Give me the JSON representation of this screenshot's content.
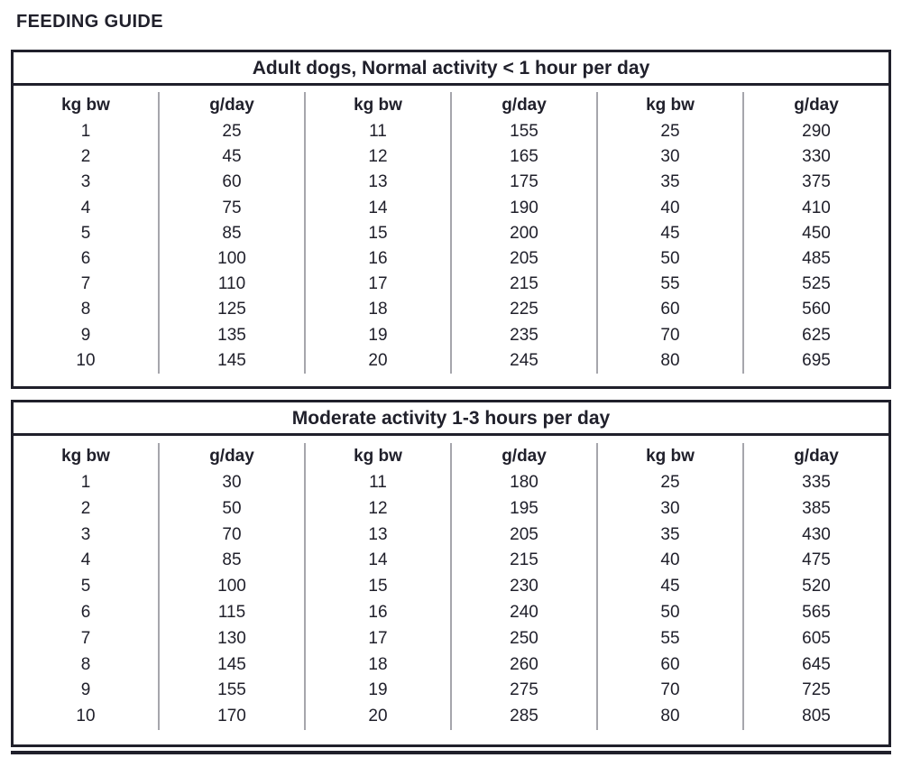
{
  "page_title": "FEEDING GUIDE",
  "colors": {
    "ink": "#20202b",
    "divider": "#a6a6ac",
    "background": "#ffffff"
  },
  "tables": [
    {
      "title": "Adult dogs, Normal activity < 1 hour per day",
      "col_header_kg": "kg bw",
      "col_header_g": "g/day",
      "groups": [
        {
          "kg": [
            1,
            2,
            3,
            4,
            5,
            6,
            7,
            8,
            9,
            10
          ],
          "g": [
            25,
            45,
            60,
            75,
            85,
            100,
            110,
            125,
            135,
            145
          ]
        },
        {
          "kg": [
            11,
            12,
            13,
            14,
            15,
            16,
            17,
            18,
            19,
            20
          ],
          "g": [
            155,
            165,
            175,
            190,
            200,
            205,
            215,
            225,
            235,
            245
          ]
        },
        {
          "kg": [
            25,
            30,
            35,
            40,
            45,
            50,
            55,
            60,
            70,
            80
          ],
          "g": [
            290,
            330,
            375,
            410,
            450,
            485,
            525,
            560,
            625,
            695
          ]
        }
      ]
    },
    {
      "title": "Moderate activity 1-3 hours per day",
      "col_header_kg": "kg bw",
      "col_header_g": "g/day",
      "groups": [
        {
          "kg": [
            1,
            2,
            3,
            4,
            5,
            6,
            7,
            8,
            9,
            10
          ],
          "g": [
            30,
            50,
            70,
            85,
            100,
            115,
            130,
            145,
            155,
            170
          ]
        },
        {
          "kg": [
            11,
            12,
            13,
            14,
            15,
            16,
            17,
            18,
            19,
            20
          ],
          "g": [
            180,
            195,
            205,
            215,
            230,
            240,
            250,
            260,
            275,
            285
          ]
        },
        {
          "kg": [
            25,
            30,
            35,
            40,
            45,
            50,
            55,
            60,
            70,
            80
          ],
          "g": [
            335,
            385,
            430,
            475,
            520,
            565,
            605,
            645,
            725,
            805
          ]
        }
      ]
    }
  ]
}
